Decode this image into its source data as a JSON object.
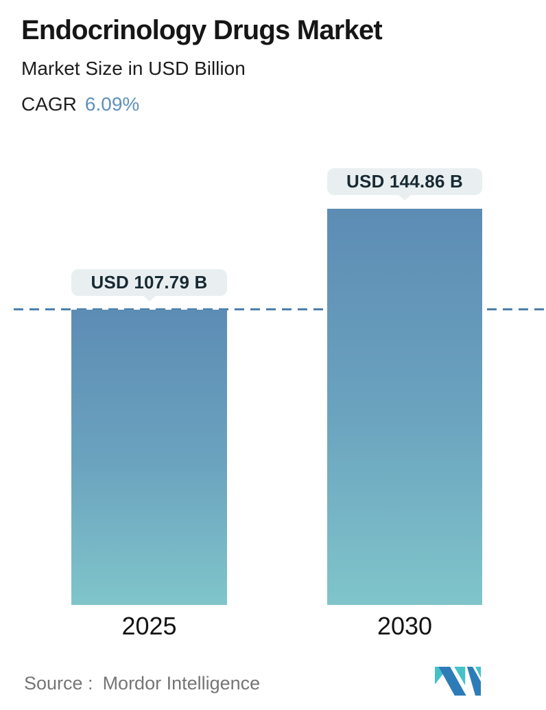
{
  "header": {
    "title": "Endocrinology Drugs Market",
    "subtitle": "Market Size in USD Billion",
    "cagr_label": "CAGR",
    "cagr_value": "6.09%"
  },
  "chart_data": {
    "type": "bar",
    "categories": [
      "2025",
      "2030"
    ],
    "values": [
      107.79,
      144.86
    ],
    "value_labels": [
      "USD 107.79 B",
      "USD 144.86 B"
    ],
    "unit": "USD Billion",
    "title": "Endocrinology Drugs Market",
    "xlabel": "",
    "ylabel": "Market Size in USD Billion",
    "ylim": [
      0,
      160
    ],
    "grid": false,
    "legend": false,
    "reference_line": {
      "value": 107.79,
      "style": "dashed"
    }
  },
  "footer": {
    "source_label": "Source :",
    "source_value": "Mordor Intelligence",
    "logo_name": "mordor-intelligence-logo"
  },
  "colors": {
    "title_text": "#161616",
    "cagr_accent": "#5e90bd",
    "bar_gradient_top": "#5d8cb4",
    "bar_gradient_mid": "#6ba3bf",
    "bar_gradient_bottom": "#80c5ca",
    "dashed_line": "#4d7fa9",
    "tooltip_bg": "#e9eff1",
    "tooltip_text": "#182a33",
    "source_text": "#757575",
    "logo_teal": "#45c1c8",
    "logo_blue": "#2e7cb7"
  }
}
